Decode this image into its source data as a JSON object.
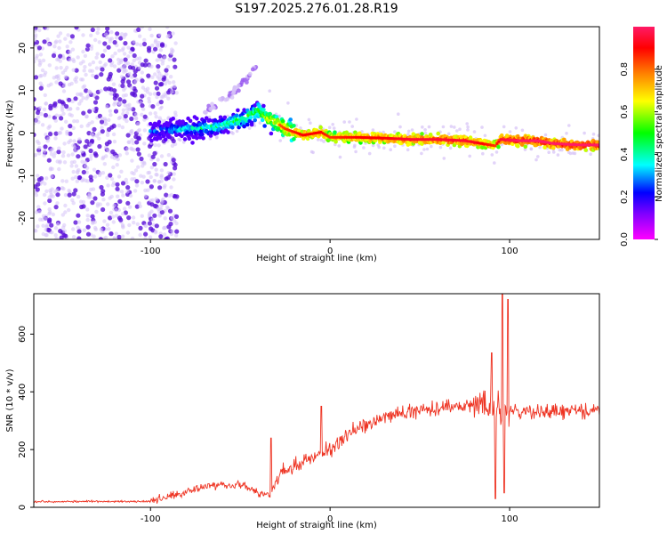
{
  "title": "S197.2025.276.01.28.R19",
  "colors": {
    "snr_line": "#ee3322",
    "scatter_core": "#5a10d8",
    "scatter_light": "#d6c2f7",
    "colorbar_stops": [
      "#ff00ff",
      "#8000ff",
      "#0000ff",
      "#00ffff",
      "#00ff00",
      "#ffff00",
      "#ff8000",
      "#ff0000",
      "#ff1a66"
    ]
  },
  "chart_data": [
    {
      "type": "scatter",
      "name": "spectrogram",
      "xlabel": "Height of straight line (km)",
      "ylabel": "Frequency (Hz)",
      "xlim": [
        -165,
        150
      ],
      "ylim": [
        -25,
        25
      ],
      "x_ticks": [
        "-100",
        "0",
        "100"
      ],
      "x_tick_values": [
        -100,
        0,
        100
      ],
      "y_ticks": [
        "-20",
        "-10",
        "0",
        "10",
        "20"
      ],
      "y_tick_values": [
        -20,
        -10,
        0,
        10,
        20
      ],
      "colorbar": {
        "label": "Normalized spectral amplitude",
        "ticks": [
          "0.0",
          "0.2",
          "0.4",
          "0.6",
          "0.8"
        ],
        "tick_values": [
          0.0,
          0.2,
          0.4,
          0.6,
          0.8
        ],
        "range": [
          0,
          1
        ]
      },
      "ridge": [
        {
          "x": -100,
          "y": 0.5,
          "amp": 0.35
        },
        {
          "x": -90,
          "y": 0.6,
          "amp": 0.4
        },
        {
          "x": -80,
          "y": 1.0,
          "amp": 0.45
        },
        {
          "x": -70,
          "y": 1.2,
          "amp": 0.5
        },
        {
          "x": -60,
          "y": 1.8,
          "amp": 0.5
        },
        {
          "x": -50,
          "y": 3.0,
          "amp": 0.55
        },
        {
          "x": -40,
          "y": 5.2,
          "amp": 0.6
        },
        {
          "x": -35,
          "y": 3.5,
          "amp": 0.7
        },
        {
          "x": -30,
          "y": 2.5,
          "amp": 0.75
        },
        {
          "x": -25,
          "y": 1.0,
          "amp": 0.8
        },
        {
          "x": -15,
          "y": -0.5,
          "amp": 0.85
        },
        {
          "x": -5,
          "y": 0.2,
          "amp": 0.85
        },
        {
          "x": 0,
          "y": -1.0,
          "amp": 0.8
        },
        {
          "x": 15,
          "y": -1.0,
          "amp": 0.85
        },
        {
          "x": 30,
          "y": -1.2,
          "amp": 0.85
        },
        {
          "x": 45,
          "y": -1.5,
          "amp": 0.9
        },
        {
          "x": 60,
          "y": -1.5,
          "amp": 0.9
        },
        {
          "x": 75,
          "y": -1.8,
          "amp": 0.9
        },
        {
          "x": 85,
          "y": -2.5,
          "amp": 0.85
        },
        {
          "x": 92,
          "y": -3.0,
          "amp": 0.8
        },
        {
          "x": 95,
          "y": -1.5,
          "amp": 0.9
        },
        {
          "x": 105,
          "y": -1.8,
          "amp": 0.95
        },
        {
          "x": 115,
          "y": -1.8,
          "amp": 0.95
        },
        {
          "x": 125,
          "y": -2.5,
          "amp": 0.95
        },
        {
          "x": 140,
          "y": -2.8,
          "amp": 0.95
        },
        {
          "x": 150,
          "y": -2.8,
          "amp": 0.95
        }
      ],
      "secondary_branch": [
        {
          "x": -70,
          "y": 5.0
        },
        {
          "x": -55,
          "y": 9.0
        },
        {
          "x": -45,
          "y": 13.5
        },
        {
          "x": -40,
          "y": 16.5
        }
      ]
    },
    {
      "type": "line",
      "name": "snr",
      "xlabel": "Height of straight line (km)",
      "ylabel": "SNR (10 * v/v)",
      "xlim": [
        -165,
        150
      ],
      "ylim": [
        0,
        740
      ],
      "x_ticks": [
        "-100",
        "0",
        "100"
      ],
      "x_tick_values": [
        -100,
        0,
        100
      ],
      "y_ticks": [
        "0",
        "200",
        "400",
        "600"
      ],
      "y_tick_values": [
        0,
        200,
        400,
        600
      ],
      "envelope": [
        {
          "x": -165,
          "y": 20
        },
        {
          "x": -100,
          "y": 20
        },
        {
          "x": -85,
          "y": 45
        },
        {
          "x": -70,
          "y": 75
        },
        {
          "x": -50,
          "y": 80
        },
        {
          "x": -40,
          "y": 50
        },
        {
          "x": -33,
          "y": 40
        },
        {
          "x": -28,
          "y": 120
        },
        {
          "x": -20,
          "y": 140
        },
        {
          "x": -10,
          "y": 170
        },
        {
          "x": 0,
          "y": 200
        },
        {
          "x": 10,
          "y": 250
        },
        {
          "x": 20,
          "y": 290
        },
        {
          "x": 30,
          "y": 310
        },
        {
          "x": 50,
          "y": 340
        },
        {
          "x": 70,
          "y": 350
        },
        {
          "x": 85,
          "y": 355
        },
        {
          "x": 95,
          "y": 330
        },
        {
          "x": 105,
          "y": 330
        },
        {
          "x": 120,
          "y": 330
        },
        {
          "x": 150,
          "y": 335
        }
      ],
      "spikes": [
        {
          "x": -33,
          "y": 240
        },
        {
          "x": -5,
          "y": 350
        },
        {
          "x": 90,
          "y": 535
        },
        {
          "x": 92,
          "y": 30
        },
        {
          "x": 96,
          "y": 740
        },
        {
          "x": 97,
          "y": 50
        },
        {
          "x": 99,
          "y": 720
        }
      ]
    }
  ]
}
